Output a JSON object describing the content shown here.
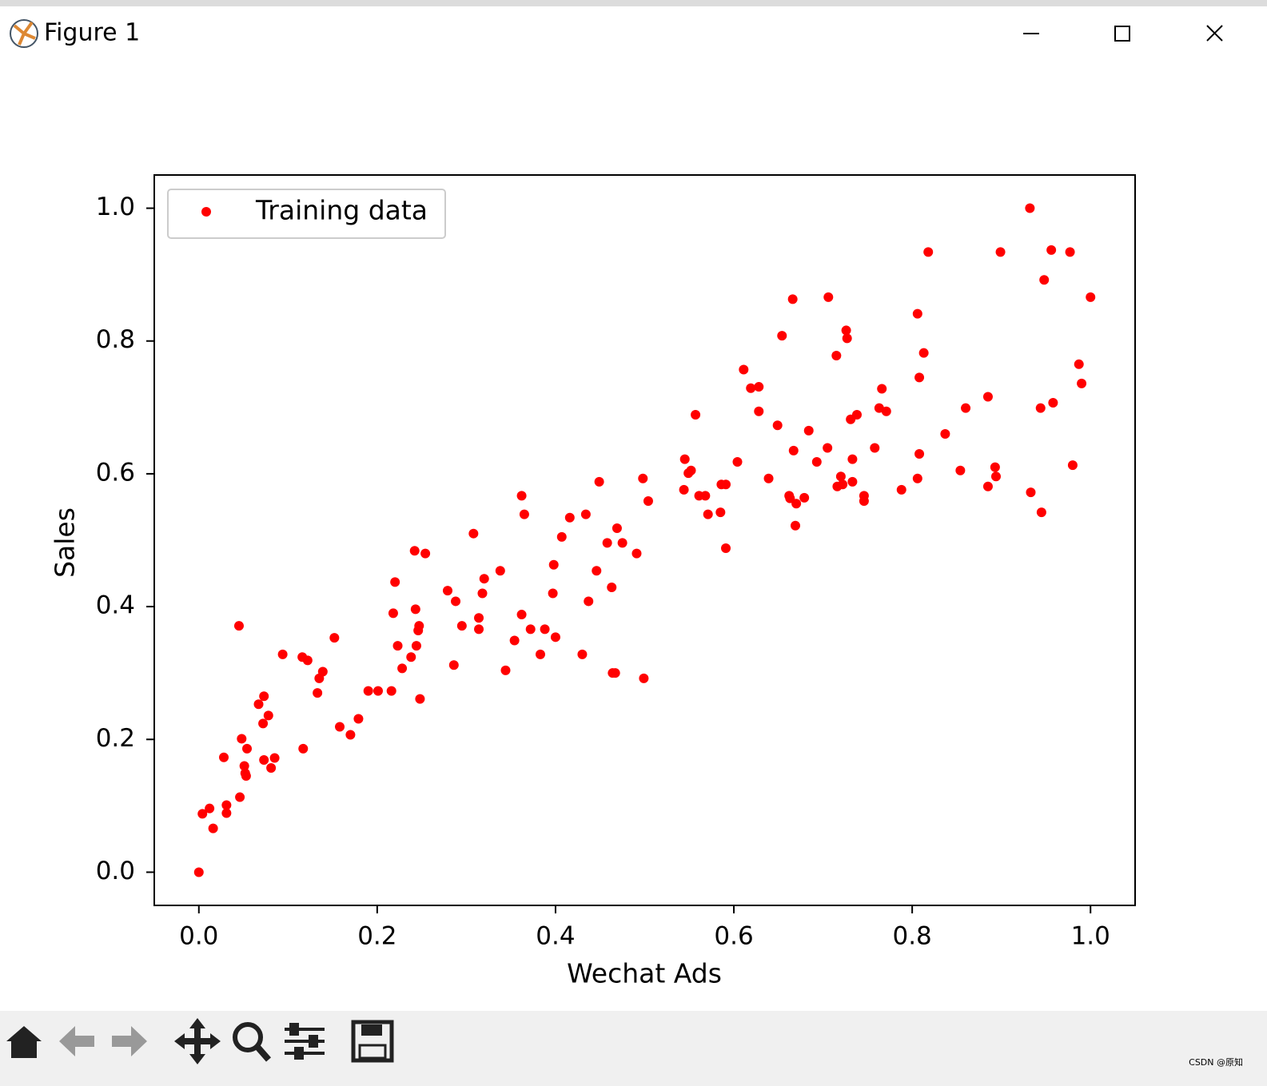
{
  "window": {
    "title": "Figure 1"
  },
  "watermark": "CSDN @原知",
  "chart_data": {
    "type": "scatter",
    "xlabel": "Wechat Ads",
    "ylabel": "Sales",
    "xlim": [
      -0.05,
      1.05
    ],
    "ylim": [
      -0.05,
      1.05
    ],
    "xticks": [
      {
        "value": 0,
        "label": "0.0"
      },
      0.2,
      0.4,
      0.6,
      0.8,
      {
        "value": 1,
        "label": "1.0"
      }
    ],
    "yticks": [
      {
        "value": 0,
        "label": "0.0"
      },
      0.2,
      0.4,
      0.6,
      0.8,
      {
        "value": 1,
        "label": "1.0"
      }
    ],
    "legend": "upper left",
    "x": [
      0,
      0.004,
      0.012,
      0.016,
      0.028,
      0.031,
      0.031,
      0.045,
      0.046,
      0.048,
      0.051,
      0.052,
      0.053,
      0.054,
      0.067,
      0.073,
      0.072,
      0.073,
      0.078,
      0.081,
      0.085,
      0.094,
      0.116,
      0.122,
      0.117,
      0.133,
      0.135,
      0.139,
      0.152,
      0.158,
      0.17,
      0.179,
      0.19,
      0.201,
      0.216,
      0.218,
      0.22,
      0.223,
      0.228,
      0.238,
      0.242,
      0.243,
      0.244,
      0.246,
      0.247,
      0.248,
      0.254,
      0.279,
      0.286,
      0.288,
      0.295,
      0.308,
      0.314,
      0.314,
      0.318,
      0.32,
      0.338,
      0.344,
      0.354,
      0.362,
      0.362,
      0.365,
      0.372,
      0.383,
      0.388,
      0.398,
      0.397,
      0.4,
      0.407,
      0.416,
      0.43,
      0.434,
      0.437,
      0.446,
      0.449,
      0.458,
      0.463,
      0.464,
      0.467,
      0.469,
      0.475,
      0.491,
      0.498,
      0.499,
      0.504,
      0.544,
      0.545,
      0.549,
      0.552,
      0.557,
      0.561,
      0.568,
      0.571,
      0.585,
      0.586,
      0.591,
      0.591,
      0.604,
      0.611,
      0.619,
      0.628,
      0.628,
      0.639,
      0.649,
      0.654,
      0.662,
      0.663,
      0.666,
      0.667,
      0.669,
      0.67,
      0.679,
      0.684,
      0.693,
      0.705,
      0.706,
      0.715,
      0.716,
      0.72,
      0.722,
      0.726,
      0.727,
      0.731,
      0.733,
      0.733,
      0.738,
      0.746,
      0.746,
      0.758,
      0.763,
      0.766,
      0.771,
      0.788,
      0.806,
      0.806,
      0.808,
      0.808,
      0.813,
      0.818,
      0.837,
      0.854,
      0.86,
      0.885,
      0.885,
      0.893,
      0.894,
      0.899,
      0.932,
      0.933,
      0.944,
      0.945,
      0.948,
      0.956,
      0.958,
      0.977,
      0.98,
      0.987,
      0.99,
      1.0
    ],
    "series": [
      {
        "name": "Training data",
        "color": "#ff0000",
        "values": [
          0,
          0.088,
          0.096,
          0.066,
          0.173,
          0.101,
          0.089,
          0.371,
          0.113,
          0.201,
          0.16,
          0.149,
          0.145,
          0.186,
          0.253,
          0.265,
          0.224,
          0.169,
          0.236,
          0.157,
          0.172,
          0.328,
          0.324,
          0.319,
          0.186,
          0.27,
          0.292,
          0.302,
          0.353,
          0.219,
          0.207,
          0.231,
          0.273,
          0.273,
          0.273,
          0.39,
          0.437,
          0.341,
          0.307,
          0.324,
          0.484,
          0.396,
          0.341,
          0.364,
          0.371,
          0.261,
          0.48,
          0.424,
          0.312,
          0.408,
          0.371,
          0.51,
          0.383,
          0.366,
          0.42,
          0.442,
          0.454,
          0.304,
          0.349,
          0.567,
          0.388,
          0.539,
          0.366,
          0.328,
          0.366,
          0.463,
          0.42,
          0.354,
          0.505,
          0.534,
          0.328,
          0.539,
          0.408,
          0.454,
          0.588,
          0.496,
          0.429,
          0.3,
          0.3,
          0.518,
          0.496,
          0.48,
          0.593,
          0.292,
          0.559,
          0.576,
          0.622,
          0.601,
          0.605,
          0.689,
          0.567,
          0.567,
          0.539,
          0.542,
          0.584,
          0.584,
          0.488,
          0.618,
          0.757,
          0.729,
          0.731,
          0.694,
          0.593,
          0.673,
          0.808,
          0.567,
          0.563,
          0.863,
          0.635,
          0.522,
          0.555,
          0.564,
          0.665,
          0.618,
          0.639,
          0.866,
          0.778,
          0.581,
          0.596,
          0.584,
          0.816,
          0.804,
          0.682,
          0.622,
          0.588,
          0.689,
          0.567,
          0.559,
          0.639,
          0.699,
          0.728,
          0.694,
          0.576,
          0.841,
          0.593,
          0.745,
          0.63,
          0.782,
          0.934,
          0.66,
          0.605,
          0.699,
          0.716,
          0.581,
          0.61,
          0.596,
          0.934,
          1.0,
          0.572,
          0.699,
          0.542,
          0.892,
          0.937,
          0.707,
          0.934,
          0.613,
          0.765,
          0.736,
          0.866
        ]
      }
    ]
  }
}
